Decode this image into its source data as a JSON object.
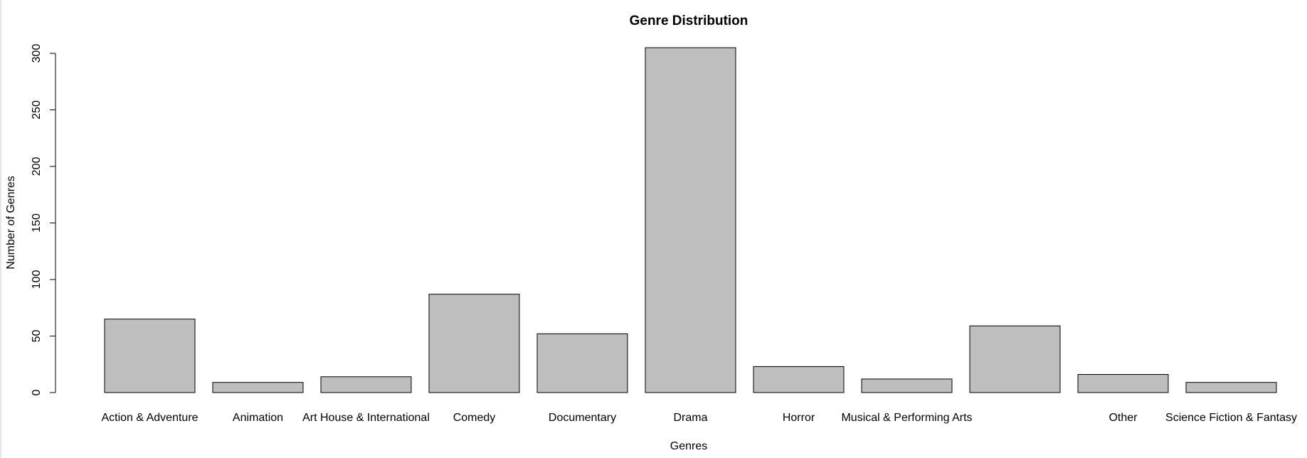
{
  "chart_data": {
    "type": "bar",
    "title": "Genre Distribution",
    "xlabel": "Genres",
    "ylabel": "Number of Genres",
    "categories": [
      "Action & Adventure",
      "Animation",
      "Art House & International",
      "Comedy",
      "Documentary",
      "Drama",
      "Horror",
      "Musical & Performing Arts",
      "",
      "Other",
      "Science Fiction & Fantasy"
    ],
    "values": [
      65,
      9,
      14,
      87,
      52,
      305,
      23,
      12,
      59,
      16,
      9
    ],
    "ylim": [
      0,
      300
    ],
    "yticks": [
      "0",
      "50",
      "100",
      "150",
      "200",
      "250",
      "300"
    ],
    "grid": false,
    "legend": "none",
    "colors": {
      "bar_fill": "#bebebe",
      "bar_stroke": "#000000",
      "background": "#ffffff"
    }
  }
}
